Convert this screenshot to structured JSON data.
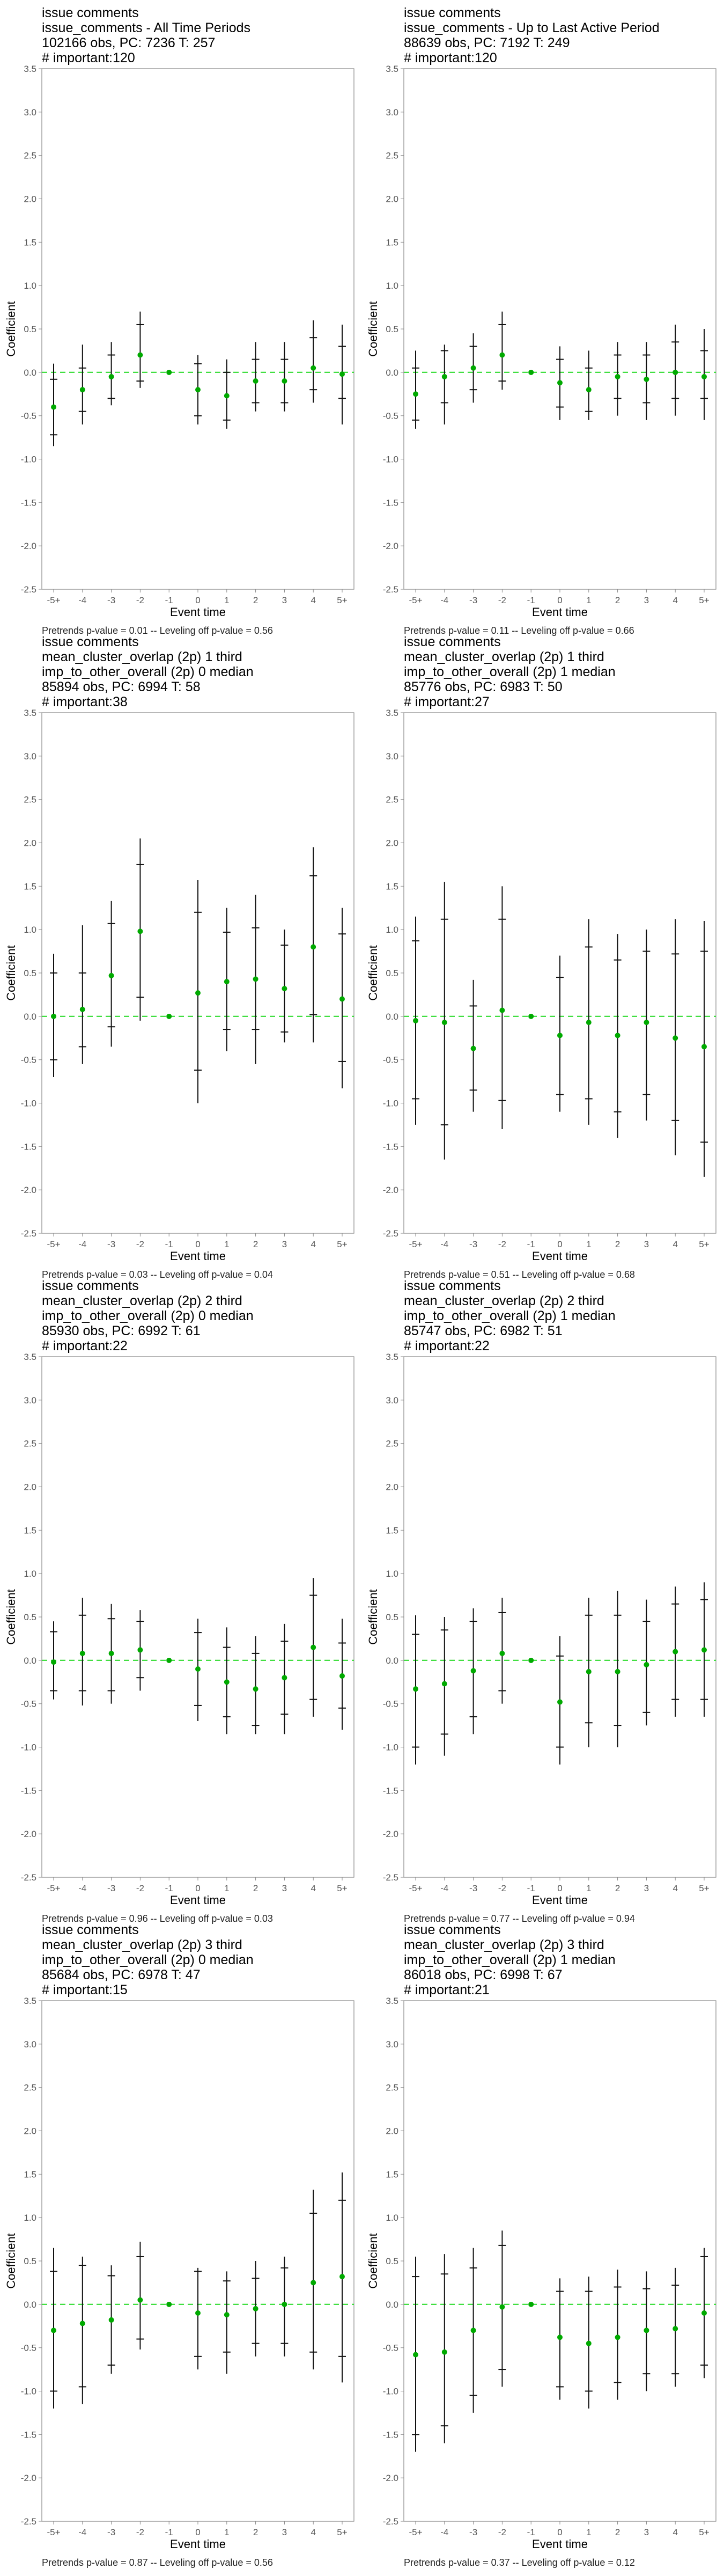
{
  "chart_data": [
    {
      "type": "scatter",
      "title_lines": [
        "issue comments",
        "issue_comments - All Time Periods",
        "102166 obs, PC: 7236 T: 257",
        "# important:120"
      ],
      "xlabel": "Event time",
      "ylabel": "Coefficient",
      "categories": [
        "-5+",
        "-4",
        "-3",
        "-2",
        "-1",
        "0",
        "1",
        "2",
        "3",
        "4",
        "5+"
      ],
      "ylim": [
        -2.5,
        3.5
      ],
      "yticks": [
        -2.5,
        -2.0,
        -1.5,
        -1.0,
        -0.5,
        0.0,
        0.5,
        1.0,
        1.5,
        2.0,
        2.5,
        3.0,
        3.5
      ],
      "ytick_labels": [
        "-2.5",
        "-2.0",
        "-1.5",
        "-1.0",
        "-0.5",
        "0.0",
        "0.5",
        "1.0",
        "1.5",
        "2.0",
        "2.5",
        "3.0",
        "3.5"
      ],
      "estimate": [
        -0.4,
        -0.2,
        -0.05,
        0.2,
        0.0,
        -0.2,
        -0.27,
        -0.1,
        -0.1,
        0.05,
        -0.02
      ],
      "ci_inner": [
        [
          -0.72,
          -0.08
        ],
        [
          -0.45,
          0.05
        ],
        [
          -0.3,
          0.2
        ],
        [
          -0.1,
          0.55
        ],
        [
          0,
          0
        ],
        [
          -0.5,
          0.1
        ],
        [
          -0.55,
          0.0
        ],
        [
          -0.35,
          0.15
        ],
        [
          -0.35,
          0.15
        ],
        [
          -0.2,
          0.4
        ],
        [
          -0.3,
          0.3
        ]
      ],
      "ci_outer": [
        [
          -0.85,
          0.1
        ],
        [
          -0.6,
          0.32
        ],
        [
          -0.38,
          0.35
        ],
        [
          -0.18,
          0.7
        ],
        [
          0,
          0
        ],
        [
          -0.6,
          0.2
        ],
        [
          -0.65,
          0.15
        ],
        [
          -0.45,
          0.35
        ],
        [
          -0.45,
          0.35
        ],
        [
          -0.35,
          0.6
        ],
        [
          -0.6,
          0.55
        ]
      ],
      "reference_line": 0.0,
      "footnote": "Pretrends p-value = 0.01 -- Leveling off p-value = 0.56"
    },
    {
      "type": "scatter",
      "title_lines": [
        "issue comments",
        "issue_comments - Up to Last Active Period",
        "88639 obs, PC: 7192 T: 249",
        "# important:120"
      ],
      "xlabel": "Event time",
      "ylabel": "Coefficient",
      "categories": [
        "-5+",
        "-4",
        "-3",
        "-2",
        "-1",
        "0",
        "1",
        "2",
        "3",
        "4",
        "5+"
      ],
      "ylim": [
        -2.5,
        3.5
      ],
      "yticks": [
        -2.5,
        -2.0,
        -1.5,
        -1.0,
        -0.5,
        0.0,
        0.5,
        1.0,
        1.5,
        2.0,
        2.5,
        3.0,
        3.5
      ],
      "ytick_labels": [
        "-2.5",
        "-2.0",
        "-1.5",
        "-1.0",
        "-0.5",
        "0.0",
        "0.5",
        "1.0",
        "1.5",
        "2.0",
        "2.5",
        "3.0",
        "3.5"
      ],
      "estimate": [
        -0.25,
        -0.05,
        0.05,
        0.2,
        0.0,
        -0.12,
        -0.2,
        -0.05,
        -0.08,
        0.0,
        -0.05
      ],
      "ci_inner": [
        [
          -0.55,
          0.05
        ],
        [
          -0.35,
          0.25
        ],
        [
          -0.2,
          0.3
        ],
        [
          -0.1,
          0.55
        ],
        [
          0,
          0
        ],
        [
          -0.4,
          0.15
        ],
        [
          -0.45,
          0.05
        ],
        [
          -0.3,
          0.2
        ],
        [
          -0.35,
          0.2
        ],
        [
          -0.3,
          0.35
        ],
        [
          -0.3,
          0.25
        ]
      ],
      "ci_outer": [
        [
          -0.65,
          0.25
        ],
        [
          -0.6,
          0.32
        ],
        [
          -0.35,
          0.45
        ],
        [
          -0.2,
          0.7
        ],
        [
          0,
          0
        ],
        [
          -0.55,
          0.3
        ],
        [
          -0.55,
          0.25
        ],
        [
          -0.5,
          0.35
        ],
        [
          -0.55,
          0.35
        ],
        [
          -0.5,
          0.55
        ],
        [
          -0.55,
          0.5
        ]
      ],
      "reference_line": 0.0,
      "footnote": "Pretrends p-value = 0.11 -- Leveling off p-value = 0.66"
    },
    {
      "type": "scatter",
      "title_lines": [
        "issue comments",
        "mean_cluster_overlap (2p) 1 third",
        "imp_to_other_overall (2p) 0 median",
        "85894 obs, PC: 6994 T: 58",
        "# important:38"
      ],
      "xlabel": "Event time",
      "ylabel": "Coefficient",
      "categories": [
        "-5+",
        "-4",
        "-3",
        "-2",
        "-1",
        "0",
        "1",
        "2",
        "3",
        "4",
        "5+"
      ],
      "ylim": [
        -2.5,
        3.5
      ],
      "yticks": [
        -2.5,
        -2.0,
        -1.5,
        -1.0,
        -0.5,
        0.0,
        0.5,
        1.0,
        1.5,
        2.0,
        2.5,
        3.0,
        3.5
      ],
      "ytick_labels": [
        "-2.5",
        "-2.0",
        "-1.5",
        "-1.0",
        "-0.5",
        "0.0",
        "0.5",
        "1.0",
        "1.5",
        "2.0",
        "2.5",
        "3.0",
        "3.5"
      ],
      "estimate": [
        0.0,
        0.08,
        0.47,
        0.98,
        0.0,
        0.27,
        0.4,
        0.43,
        0.32,
        0.8,
        0.2
      ],
      "ci_inner": [
        [
          -0.5,
          0.5
        ],
        [
          -0.35,
          0.5
        ],
        [
          -0.12,
          1.07
        ],
        [
          0.22,
          1.75
        ],
        [
          0,
          0
        ],
        [
          -0.62,
          1.2
        ],
        [
          -0.15,
          0.97
        ],
        [
          -0.15,
          1.02
        ],
        [
          -0.18,
          0.82
        ],
        [
          0.02,
          1.62
        ],
        [
          -0.52,
          0.95
        ]
      ],
      "ci_outer": [
        [
          -0.7,
          0.72
        ],
        [
          -0.55,
          1.05
        ],
        [
          -0.35,
          1.33
        ],
        [
          -0.05,
          2.05
        ],
        [
          0,
          0
        ],
        [
          -1.0,
          1.57
        ],
        [
          -0.4,
          1.25
        ],
        [
          -0.55,
          1.4
        ],
        [
          -0.3,
          1.0
        ],
        [
          -0.3,
          1.95
        ],
        [
          -0.83,
          1.25
        ]
      ],
      "reference_line": 0.0,
      "footnote": "Pretrends p-value = 0.03 -- Leveling off p-value = 0.04"
    },
    {
      "type": "scatter",
      "title_lines": [
        "issue comments",
        "mean_cluster_overlap (2p) 1 third",
        "imp_to_other_overall (2p) 1 median",
        "85776 obs, PC: 6983 T: 50",
        "# important:27"
      ],
      "xlabel": "Event time",
      "ylabel": "Coefficient",
      "categories": [
        "-5+",
        "-4",
        "-3",
        "-2",
        "-1",
        "0",
        "1",
        "2",
        "3",
        "4",
        "5+"
      ],
      "ylim": [
        -2.5,
        3.5
      ],
      "yticks": [
        -2.5,
        -2.0,
        -1.5,
        -1.0,
        -0.5,
        0.0,
        0.5,
        1.0,
        1.5,
        2.0,
        2.5,
        3.0,
        3.5
      ],
      "ytick_labels": [
        "-2.5",
        "-2.0",
        "-1.5",
        "-1.0",
        "-0.5",
        "0.0",
        "0.5",
        "1.0",
        "1.5",
        "2.0",
        "2.5",
        "3.0",
        "3.5"
      ],
      "estimate": [
        -0.05,
        -0.07,
        -0.37,
        0.07,
        0.0,
        -0.22,
        -0.07,
        -0.22,
        -0.07,
        -0.25,
        -0.35
      ],
      "ci_inner": [
        [
          -0.95,
          0.87
        ],
        [
          -1.25,
          1.12
        ],
        [
          -0.85,
          0.12
        ],
        [
          -0.97,
          1.12
        ],
        [
          0,
          0
        ],
        [
          -0.9,
          0.45
        ],
        [
          -0.95,
          0.8
        ],
        [
          -1.1,
          0.65
        ],
        [
          -0.9,
          0.75
        ],
        [
          -1.2,
          0.72
        ],
        [
          -1.45,
          0.75
        ]
      ],
      "ci_outer": [
        [
          -1.25,
          1.15
        ],
        [
          -1.65,
          1.55
        ],
        [
          -1.1,
          0.42
        ],
        [
          -1.3,
          1.5
        ],
        [
          0,
          0
        ],
        [
          -1.1,
          0.7
        ],
        [
          -1.25,
          1.12
        ],
        [
          -1.4,
          0.95
        ],
        [
          -1.2,
          1.0
        ],
        [
          -1.6,
          1.12
        ],
        [
          -1.85,
          1.1
        ]
      ],
      "reference_line": 0.0,
      "footnote": "Pretrends p-value = 0.51 -- Leveling off p-value = 0.68"
    },
    {
      "type": "scatter",
      "title_lines": [
        "issue comments",
        "mean_cluster_overlap (2p) 2 third",
        "imp_to_other_overall (2p) 0 median",
        "85930 obs, PC: 6992 T: 61",
        "# important:22"
      ],
      "xlabel": "Event time",
      "ylabel": "Coefficient",
      "categories": [
        "-5+",
        "-4",
        "-3",
        "-2",
        "-1",
        "0",
        "1",
        "2",
        "3",
        "4",
        "5+"
      ],
      "ylim": [
        -2.5,
        3.5
      ],
      "yticks": [
        -2.5,
        -2.0,
        -1.5,
        -1.0,
        -0.5,
        0.0,
        0.5,
        1.0,
        1.5,
        2.0,
        2.5,
        3.0,
        3.5
      ],
      "ytick_labels": [
        "-2.5",
        "-2.0",
        "-1.5",
        "-1.0",
        "-0.5",
        "0.0",
        "0.5",
        "1.0",
        "1.5",
        "2.0",
        "2.5",
        "3.0",
        "3.5"
      ],
      "estimate": [
        -0.02,
        0.08,
        0.08,
        0.12,
        0.0,
        -0.1,
        -0.25,
        -0.33,
        -0.2,
        0.15,
        -0.18
      ],
      "ci_inner": [
        [
          -0.35,
          0.33
        ],
        [
          -0.35,
          0.52
        ],
        [
          -0.35,
          0.48
        ],
        [
          -0.2,
          0.45
        ],
        [
          0,
          0
        ],
        [
          -0.52,
          0.32
        ],
        [
          -0.65,
          0.15
        ],
        [
          -0.75,
          0.08
        ],
        [
          -0.62,
          0.22
        ],
        [
          -0.45,
          0.75
        ],
        [
          -0.55,
          0.2
        ]
      ],
      "ci_outer": [
        [
          -0.45,
          0.45
        ],
        [
          -0.52,
          0.72
        ],
        [
          -0.5,
          0.65
        ],
        [
          -0.35,
          0.58
        ],
        [
          0,
          0
        ],
        [
          -0.7,
          0.48
        ],
        [
          -0.85,
          0.38
        ],
        [
          -0.85,
          0.28
        ],
        [
          -0.85,
          0.42
        ],
        [
          -0.65,
          0.95
        ],
        [
          -0.8,
          0.48
        ]
      ],
      "reference_line": 0.0,
      "footnote": "Pretrends p-value = 0.96 -- Leveling off p-value = 0.03"
    },
    {
      "type": "scatter",
      "title_lines": [
        "issue comments",
        "mean_cluster_overlap (2p) 2 third",
        "imp_to_other_overall (2p) 1 median",
        "85747 obs, PC: 6982 T: 51",
        "# important:22"
      ],
      "xlabel": "Event time",
      "ylabel": "Coefficient",
      "categories": [
        "-5+",
        "-4",
        "-3",
        "-2",
        "-1",
        "0",
        "1",
        "2",
        "3",
        "4",
        "5+"
      ],
      "ylim": [
        -2.5,
        3.5
      ],
      "yticks": [
        -2.5,
        -2.0,
        -1.5,
        -1.0,
        -0.5,
        0.0,
        0.5,
        1.0,
        1.5,
        2.0,
        2.5,
        3.0,
        3.5
      ],
      "ytick_labels": [
        "-2.5",
        "-2.0",
        "-1.5",
        "-1.0",
        "-0.5",
        "0.0",
        "0.5",
        "1.0",
        "1.5",
        "2.0",
        "2.5",
        "3.0",
        "3.5"
      ],
      "estimate": [
        -0.33,
        -0.27,
        -0.12,
        0.08,
        0.0,
        -0.48,
        -0.13,
        -0.13,
        -0.05,
        0.1,
        0.12
      ],
      "ci_inner": [
        [
          -1.0,
          0.3
        ],
        [
          -0.85,
          0.35
        ],
        [
          -0.65,
          0.45
        ],
        [
          -0.35,
          0.55
        ],
        [
          0,
          0
        ],
        [
          -1.0,
          0.05
        ],
        [
          -0.72,
          0.52
        ],
        [
          -0.75,
          0.52
        ],
        [
          -0.6,
          0.45
        ],
        [
          -0.45,
          0.65
        ],
        [
          -0.45,
          0.7
        ]
      ],
      "ci_outer": [
        [
          -1.2,
          0.52
        ],
        [
          -1.1,
          0.5
        ],
        [
          -0.85,
          0.6
        ],
        [
          -0.5,
          0.72
        ],
        [
          0,
          0
        ],
        [
          -1.2,
          0.28
        ],
        [
          -1.0,
          0.72
        ],
        [
          -1.0,
          0.8
        ],
        [
          -0.75,
          0.7
        ],
        [
          -0.65,
          0.85
        ],
        [
          -0.65,
          0.9
        ]
      ],
      "reference_line": 0.0,
      "footnote": "Pretrends p-value = 0.77 -- Leveling off p-value = 0.94"
    },
    {
      "type": "scatter",
      "title_lines": [
        "issue comments",
        "mean_cluster_overlap (2p) 3 third",
        "imp_to_other_overall (2p) 0 median",
        "85684 obs, PC: 6978 T: 47",
        "# important:15"
      ],
      "xlabel": "Event time",
      "ylabel": "Coefficient",
      "categories": [
        "-5+",
        "-4",
        "-3",
        "-2",
        "-1",
        "0",
        "1",
        "2",
        "3",
        "4",
        "5+"
      ],
      "ylim": [
        -2.5,
        3.5
      ],
      "yticks": [
        -2.5,
        -2.0,
        -1.5,
        -1.0,
        -0.5,
        0.0,
        0.5,
        1.0,
        1.5,
        2.0,
        2.5,
        3.0,
        3.5
      ],
      "ytick_labels": [
        "-2.5",
        "-2.0",
        "-1.5",
        "-1.0",
        "-0.5",
        "0.0",
        "0.5",
        "1.0",
        "1.5",
        "2.0",
        "2.5",
        "3.0",
        "3.5"
      ],
      "estimate": [
        -0.3,
        -0.22,
        -0.18,
        0.05,
        0.0,
        -0.1,
        -0.12,
        -0.05,
        0.0,
        0.25,
        0.32
      ],
      "ci_inner": [
        [
          -1.0,
          0.38
        ],
        [
          -0.95,
          0.45
        ],
        [
          -0.7,
          0.33
        ],
        [
          -0.4,
          0.55
        ],
        [
          0,
          0
        ],
        [
          -0.6,
          0.38
        ],
        [
          -0.55,
          0.27
        ],
        [
          -0.45,
          0.3
        ],
        [
          -0.45,
          0.42
        ],
        [
          -0.55,
          1.05
        ],
        [
          -0.6,
          1.2
        ]
      ],
      "ci_outer": [
        [
          -1.2,
          0.65
        ],
        [
          -1.15,
          0.55
        ],
        [
          -0.8,
          0.45
        ],
        [
          -0.52,
          0.72
        ],
        [
          0,
          0
        ],
        [
          -0.75,
          0.42
        ],
        [
          -0.8,
          0.38
        ],
        [
          -0.6,
          0.5
        ],
        [
          -0.6,
          0.55
        ],
        [
          -0.75,
          1.32
        ],
        [
          -0.9,
          1.52
        ]
      ],
      "reference_line": 0.0,
      "footnote": "Pretrends p-value = 0.87 -- Leveling off p-value = 0.56"
    },
    {
      "type": "scatter",
      "title_lines": [
        "issue comments",
        "mean_cluster_overlap (2p) 3 third",
        "imp_to_other_overall (2p) 1 median",
        "86018 obs, PC: 6998 T: 67",
        "# important:21"
      ],
      "xlabel": "Event time",
      "ylabel": "Coefficient",
      "categories": [
        "-5+",
        "-4",
        "-3",
        "-2",
        "-1",
        "0",
        "1",
        "2",
        "3",
        "4",
        "5+"
      ],
      "ylim": [
        -2.5,
        3.5
      ],
      "yticks": [
        -2.5,
        -2.0,
        -1.5,
        -1.0,
        -0.5,
        0.0,
        0.5,
        1.0,
        1.5,
        2.0,
        2.5,
        3.0,
        3.5
      ],
      "ytick_labels": [
        "-2.5",
        "-2.0",
        "-1.5",
        "-1.0",
        "-0.5",
        "0.0",
        "0.5",
        "1.0",
        "1.5",
        "2.0",
        "2.5",
        "3.0",
        "3.5"
      ],
      "estimate": [
        -0.58,
        -0.55,
        -0.3,
        -0.03,
        0.0,
        -0.38,
        -0.45,
        -0.38,
        -0.3,
        -0.28,
        -0.1
      ],
      "ci_inner": [
        [
          -1.5,
          0.32
        ],
        [
          -1.4,
          0.35
        ],
        [
          -1.05,
          0.42
        ],
        [
          -0.75,
          0.68
        ],
        [
          0,
          0
        ],
        [
          -0.95,
          0.15
        ],
        [
          -1.0,
          0.15
        ],
        [
          -0.9,
          0.2
        ],
        [
          -0.8,
          0.18
        ],
        [
          -0.8,
          0.22
        ],
        [
          -0.7,
          0.55
        ]
      ],
      "ci_outer": [
        [
          -1.7,
          0.55
        ],
        [
          -1.6,
          0.58
        ],
        [
          -1.25,
          0.65
        ],
        [
          -0.95,
          0.85
        ],
        [
          0,
          0
        ],
        [
          -1.1,
          0.3
        ],
        [
          -1.2,
          0.32
        ],
        [
          -1.1,
          0.4
        ],
        [
          -1.0,
          0.38
        ],
        [
          -0.95,
          0.42
        ],
        [
          -0.85,
          0.65
        ]
      ],
      "reference_line": 0.0,
      "footnote": "Pretrends p-value = 0.37 -- Leveling off p-value = 0.12"
    }
  ],
  "colors": {
    "point": "#00aa00",
    "errorbar": "#111111",
    "reference_line": "#33dd33",
    "axis": "#888888"
  }
}
